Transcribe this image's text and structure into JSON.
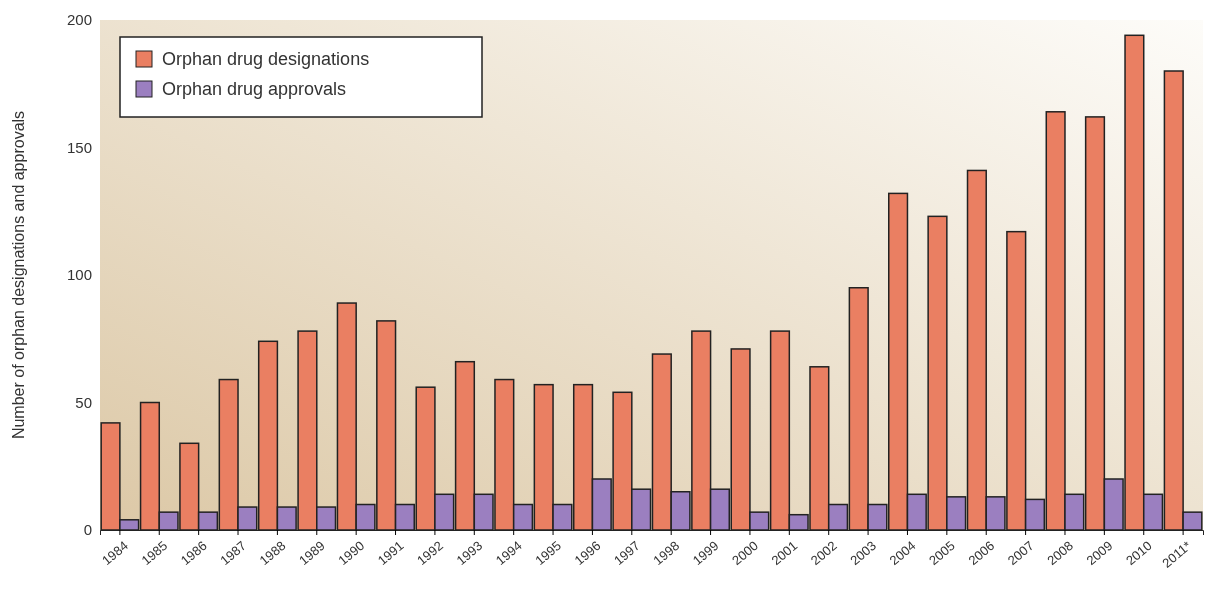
{
  "chart_data": {
    "type": "bar",
    "ylabel": "Number of orphan designations and approvals",
    "categories": [
      "1984",
      "1985",
      "1986",
      "1987",
      "1988",
      "1989",
      "1990",
      "1991",
      "1992",
      "1993",
      "1994",
      "1995",
      "1996",
      "1997",
      "1998",
      "1999",
      "2000",
      "2001",
      "2002",
      "2003",
      "2004",
      "2005",
      "2006",
      "2007",
      "2008",
      "2009",
      "2010",
      "2011*"
    ],
    "series": [
      {
        "name": "Orphan drug designations",
        "color": "#ea7f62",
        "values": [
          42,
          50,
          34,
          59,
          74,
          78,
          89,
          82,
          56,
          66,
          59,
          57,
          57,
          54,
          69,
          78,
          71,
          78,
          64,
          95,
          132,
          123,
          141,
          117,
          164,
          162,
          194,
          180
        ]
      },
      {
        "name": "Orphan drug approvals",
        "color": "#9b7fc0",
        "values": [
          4,
          7,
          7,
          9,
          9,
          9,
          10,
          10,
          14,
          14,
          10,
          10,
          20,
          16,
          15,
          16,
          7,
          6,
          10,
          10,
          14,
          13,
          13,
          12,
          14,
          20,
          14,
          7
        ]
      }
    ],
    "ylim": [
      0,
      200
    ],
    "yticks": [
      0,
      50,
      100,
      150,
      200
    ],
    "legend": "top left"
  }
}
